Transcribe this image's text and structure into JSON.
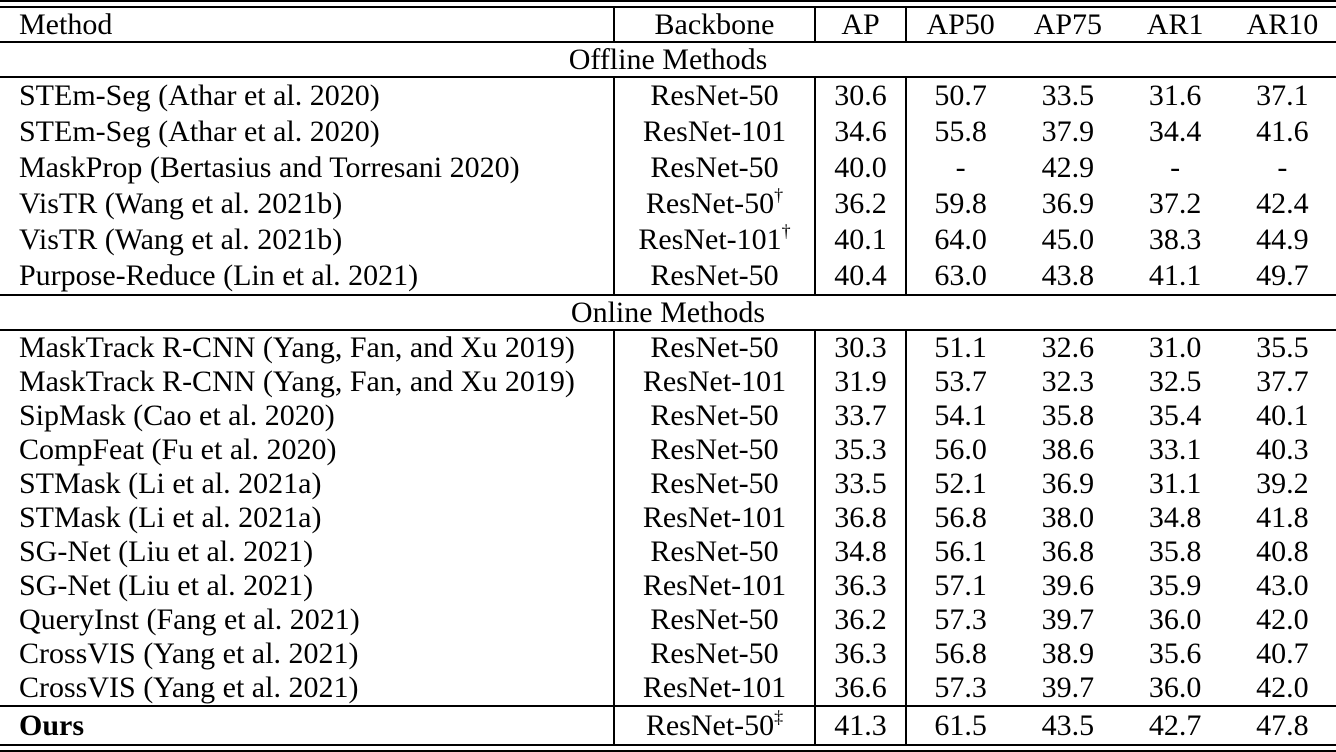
{
  "table": {
    "columns": {
      "method": "Method",
      "backbone": "Backbone",
      "ap": "AP",
      "ap50": "AP50",
      "ap75": "AP75",
      "ar1": "AR1",
      "ar10": "AR10"
    },
    "sections": [
      {
        "label": "Offline Methods",
        "rows": [
          {
            "method": "STEm-Seg (Athar et al. 2020)",
            "backbone": "ResNet-50",
            "sup": "",
            "ap": "30.6",
            "ap50": "50.7",
            "ap75": "33.5",
            "ar1": "31.6",
            "ar10": "37.1"
          },
          {
            "method": "STEm-Seg (Athar et al. 2020)",
            "backbone": "ResNet-101",
            "sup": "",
            "ap": "34.6",
            "ap50": "55.8",
            "ap75": "37.9",
            "ar1": "34.4",
            "ar10": "41.6"
          },
          {
            "method": "MaskProp (Bertasius and Torresani 2020)",
            "backbone": "ResNet-50",
            "sup": "",
            "ap": "40.0",
            "ap50": "-",
            "ap75": "42.9",
            "ar1": "-",
            "ar10": "-"
          },
          {
            "method": "VisTR (Wang et al. 2021b)",
            "backbone": "ResNet-50",
            "sup": "†",
            "ap": "36.2",
            "ap50": "59.8",
            "ap75": "36.9",
            "ar1": "37.2",
            "ar10": "42.4"
          },
          {
            "method": "VisTR (Wang et al. 2021b)",
            "backbone": "ResNet-101",
            "sup": "†",
            "ap": "40.1",
            "ap50": "64.0",
            "ap75": "45.0",
            "ar1": "38.3",
            "ar10": "44.9"
          },
          {
            "method": "Purpose-Reduce (Lin et al. 2021)",
            "backbone": "ResNet-50",
            "sup": "",
            "ap": "40.4",
            "ap50": "63.0",
            "ap75": "43.8",
            "ar1": "41.1",
            "ar10": "49.7"
          }
        ]
      },
      {
        "label": "Online Methods",
        "rows": [
          {
            "method": "MaskTrack R-CNN (Yang, Fan, and Xu 2019)",
            "backbone": "ResNet-50",
            "sup": "",
            "ap": "30.3",
            "ap50": "51.1",
            "ap75": "32.6",
            "ar1": "31.0",
            "ar10": "35.5"
          },
          {
            "method": "MaskTrack R-CNN (Yang, Fan, and Xu 2019)",
            "backbone": "ResNet-101",
            "sup": "",
            "ap": "31.9",
            "ap50": "53.7",
            "ap75": "32.3",
            "ar1": "32.5",
            "ar10": "37.7"
          },
          {
            "method": "SipMask (Cao et al. 2020)",
            "backbone": "ResNet-50",
            "sup": "",
            "ap": "33.7",
            "ap50": "54.1",
            "ap75": "35.8",
            "ar1": "35.4",
            "ar10": "40.1"
          },
          {
            "method": "CompFeat (Fu et al. 2020)",
            "backbone": "ResNet-50",
            "sup": "",
            "ap": "35.3",
            "ap50": "56.0",
            "ap75": "38.6",
            "ar1": "33.1",
            "ar10": "40.3"
          },
          {
            "method": "STMask (Li et al. 2021a)",
            "backbone": "ResNet-50",
            "sup": "",
            "ap": "33.5",
            "ap50": "52.1",
            "ap75": "36.9",
            "ar1": "31.1",
            "ar10": "39.2"
          },
          {
            "method": "STMask (Li et al. 2021a)",
            "backbone": "ResNet-101",
            "sup": "",
            "ap": "36.8",
            "ap50": "56.8",
            "ap75": "38.0",
            "ar1": "34.8",
            "ar10": "41.8"
          },
          {
            "method": "SG-Net (Liu et al. 2021)",
            "backbone": "ResNet-50",
            "sup": "",
            "ap": "34.8",
            "ap50": "56.1",
            "ap75": "36.8",
            "ar1": "35.8",
            "ar10": "40.8"
          },
          {
            "method": "SG-Net (Liu et al. 2021)",
            "backbone": "ResNet-101",
            "sup": "",
            "ap": "36.3",
            "ap50": "57.1",
            "ap75": "39.6",
            "ar1": "35.9",
            "ar10": "43.0"
          },
          {
            "method": "QueryInst (Fang et al. 2021)",
            "backbone": "ResNet-50",
            "sup": "",
            "ap": "36.2",
            "ap50": "57.3",
            "ap75": "39.7",
            "ar1": "36.0",
            "ar10": "42.0"
          },
          {
            "method": "CrossVIS (Yang et al. 2021)",
            "backbone": "ResNet-50",
            "sup": "",
            "ap": "36.3",
            "ap50": "56.8",
            "ap75": "38.9",
            "ar1": "35.6",
            "ar10": "40.7"
          },
          {
            "method": "CrossVIS (Yang et al. 2021)",
            "backbone": "ResNet-101",
            "sup": "",
            "ap": "36.6",
            "ap50": "57.3",
            "ap75": "39.7",
            "ar1": "36.0",
            "ar10": "42.0"
          }
        ]
      }
    ],
    "footer": {
      "method": "Ours",
      "backbone": "ResNet-50",
      "sup": "‡",
      "ap": "41.3",
      "ap50": "61.5",
      "ap75": "43.5",
      "ar1": "42.7",
      "ar10": "47.8"
    }
  }
}
